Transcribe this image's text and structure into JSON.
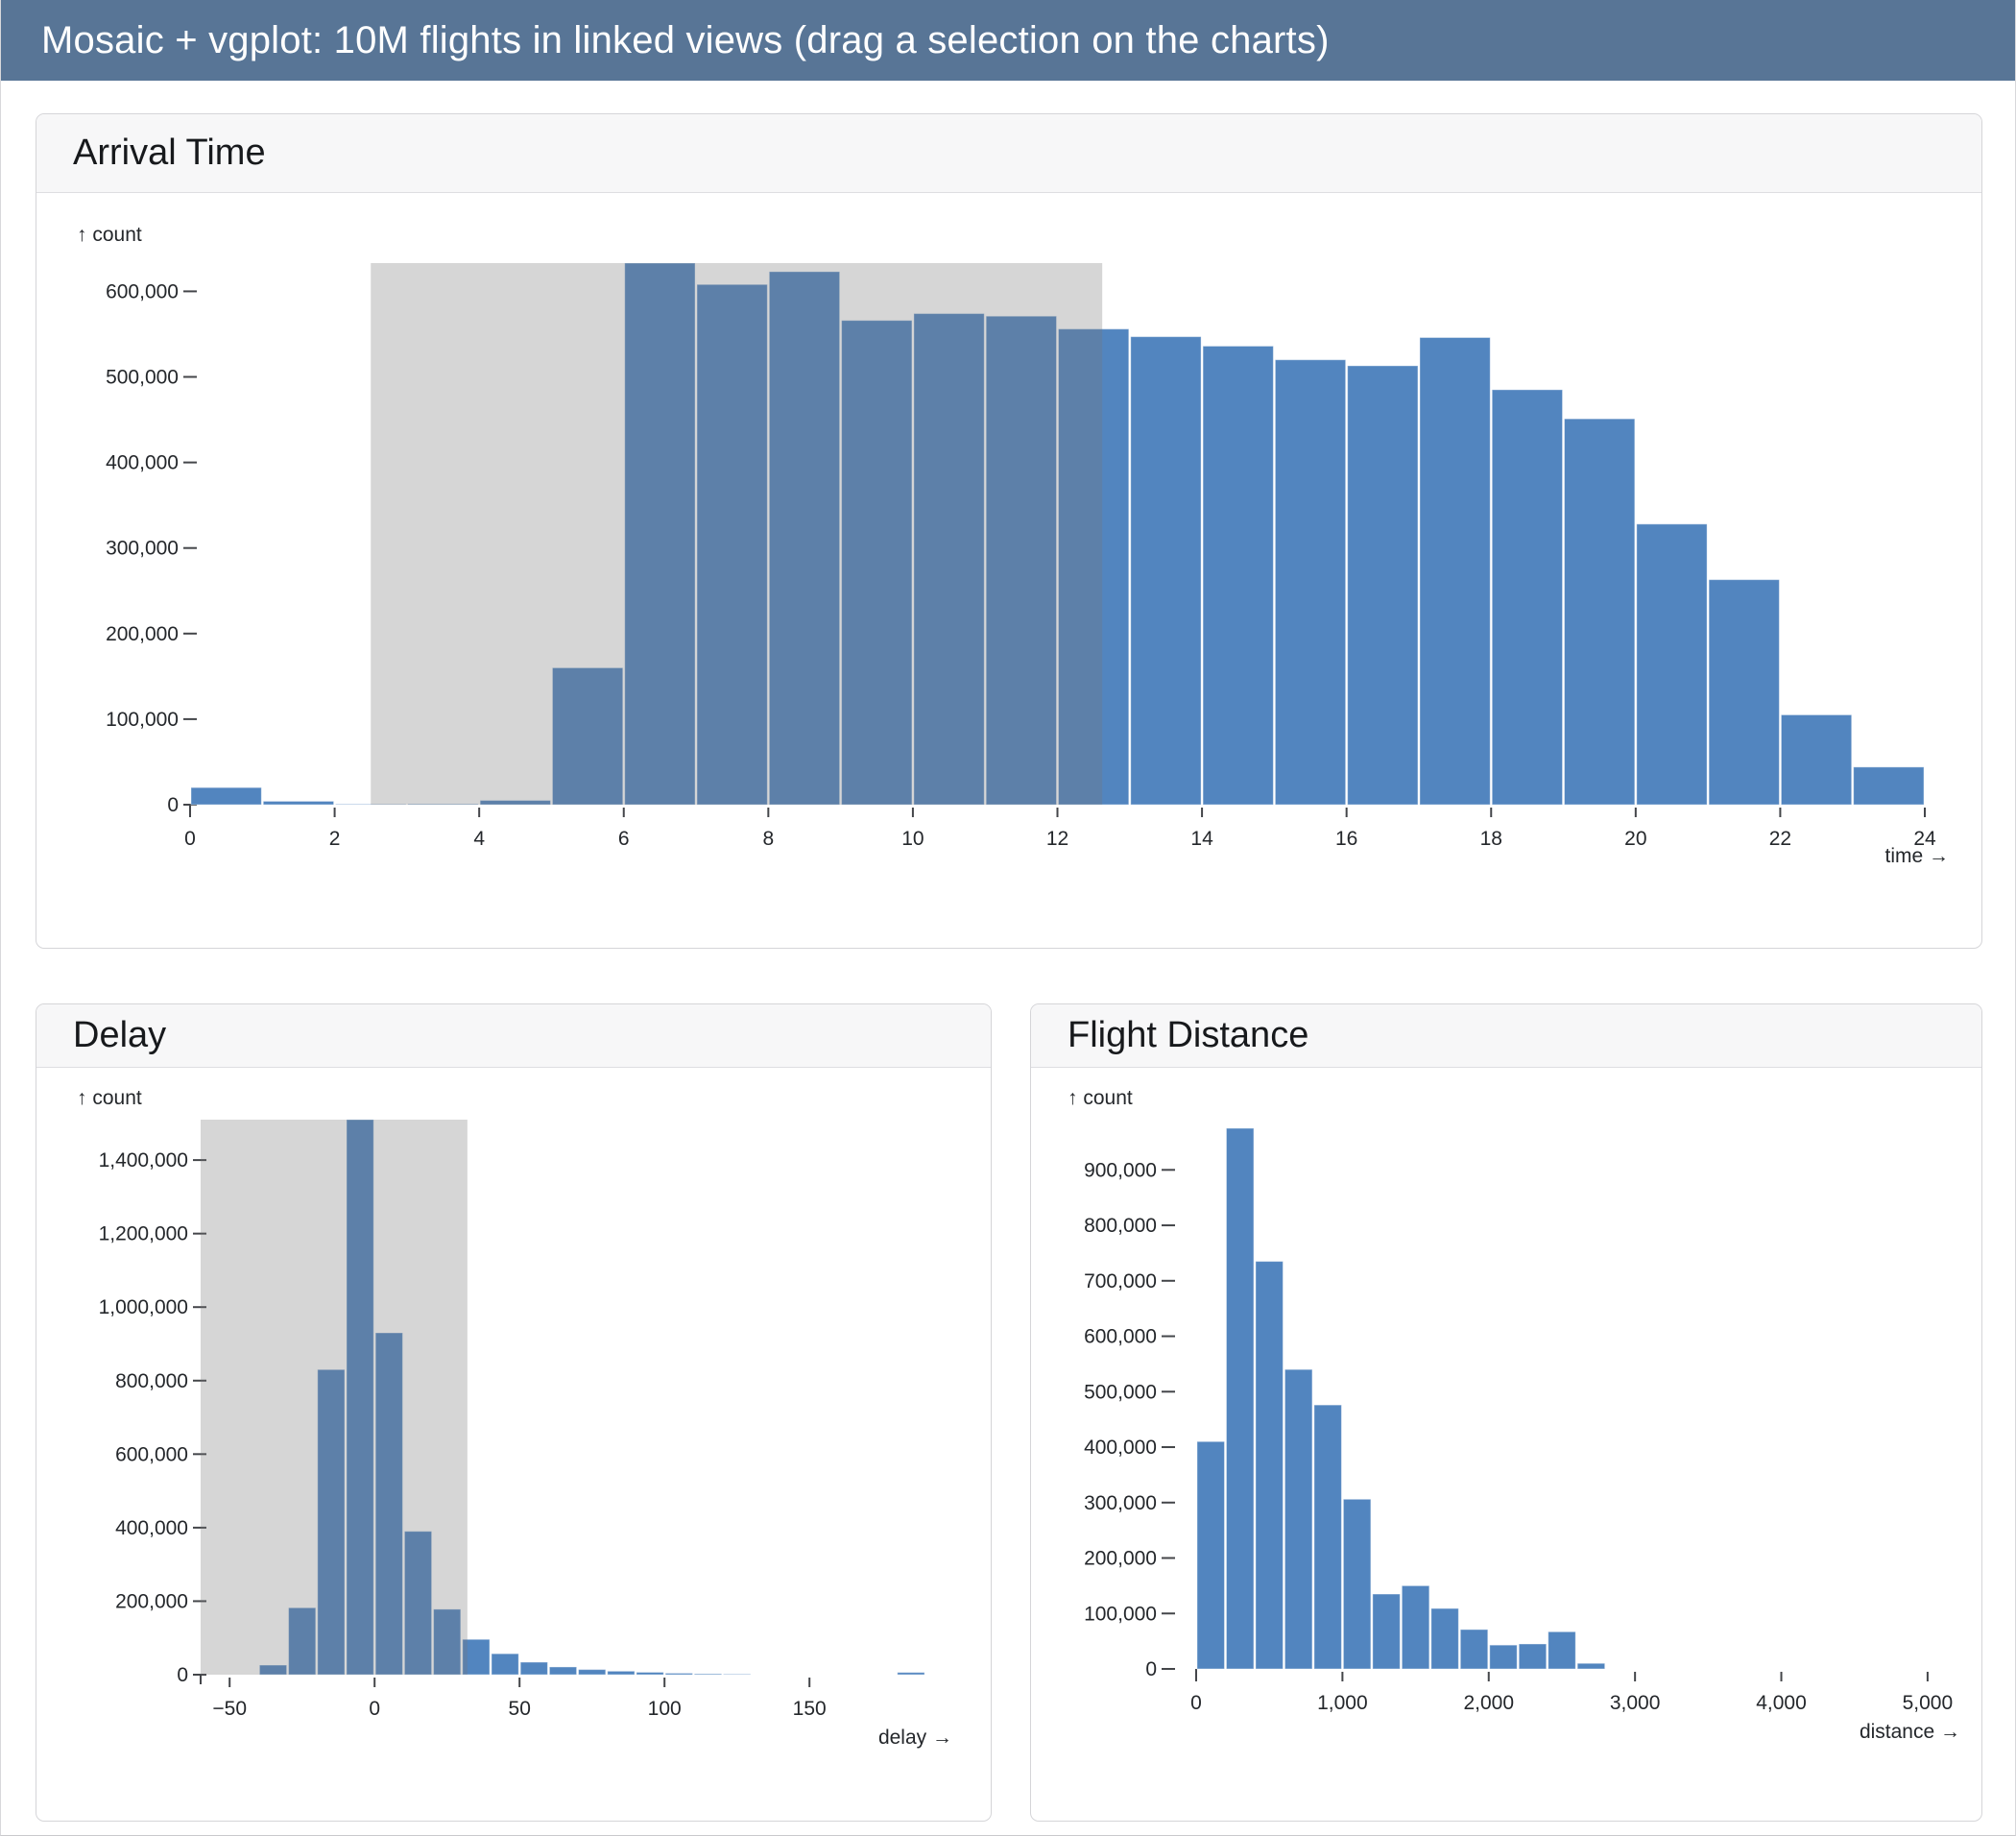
{
  "page": {
    "header_title": "Mosaic + vgplot: 10M flights in linked views (drag a selection on the charts)",
    "header_color": "#587596"
  },
  "colors": {
    "bar": "#5285BF",
    "bar_edge": "rgba(255,255,255,0.4)",
    "brush_overlay": "rgba(120,120,120,0.30)",
    "tick_text": "#24272b",
    "tick_line": "#44464a"
  },
  "chart_data": [
    {
      "id": "arrival",
      "type": "bar",
      "title": "Arrival Time",
      "count_label": "↑ count",
      "axis_label": "time →",
      "xlabel": "time",
      "ylabel": "count",
      "bin_start": 0,
      "bin_size": 1,
      "values": [
        20000,
        4000,
        500,
        800,
        5000,
        160000,
        633000,
        608000,
        623000,
        566000,
        574000,
        571000,
        556000,
        547000,
        536000,
        520000,
        513000,
        546000,
        485000,
        451000,
        328000,
        263000,
        105000,
        44000
      ],
      "x_domain": [
        0,
        24
      ],
      "x_ticks": [
        0,
        2,
        4,
        6,
        8,
        10,
        12,
        14,
        16,
        18,
        20,
        22,
        24
      ],
      "x_tick_labels": [
        "0",
        "2",
        "4",
        "6",
        "8",
        "10",
        "12",
        "14",
        "16",
        "18",
        "20",
        "22",
        "24"
      ],
      "y_max": 633000,
      "y_ticks": [
        0,
        100000,
        200000,
        300000,
        400000,
        500000,
        600000
      ],
      "y_tick_labels": [
        "0",
        "100,000",
        "200,000",
        "300,000",
        "400,000",
        "500,000",
        "600,000"
      ],
      "selection": {
        "from": 2.5,
        "to": 12.62
      },
      "grid": false,
      "legend": null
    },
    {
      "id": "delay",
      "type": "bar",
      "title": "Delay",
      "count_label": "↑ count",
      "axis_label": "delay →",
      "xlabel": "delay",
      "ylabel": "count",
      "bin_start": -60,
      "bin_size": 10,
      "values": [
        0,
        0,
        26000,
        182000,
        830000,
        1510000,
        930000,
        390000,
        178000,
        96000,
        57000,
        34000,
        21000,
        14000,
        9500,
        6500,
        4000,
        2400,
        1200,
        0,
        0,
        0,
        0,
        0,
        6000
      ],
      "x_domain": [
        -60,
        190
      ],
      "x_ticks": [
        -50,
        0,
        50,
        100,
        150
      ],
      "x_tick_labels": [
        "−50",
        "0",
        "50",
        "100",
        "150"
      ],
      "y_max": 1510000,
      "y_ticks": [
        0,
        200000,
        400000,
        600000,
        800000,
        1000000,
        1200000,
        1400000
      ],
      "y_tick_labels": [
        "0",
        "200,000",
        "400,000",
        "600,000",
        "800,000",
        "1,000,000",
        "1,200,000",
        "1,400,000"
      ],
      "selection": {
        "from": -60,
        "to": 32
      },
      "grid": false,
      "legend": null
    },
    {
      "id": "distance",
      "type": "bar",
      "title": "Flight Distance",
      "count_label": "↑ count",
      "axis_label": "distance →",
      "xlabel": "distance",
      "ylabel": "count",
      "bin_start": 0,
      "bin_size": 200,
      "values": [
        410000,
        975000,
        735000,
        540000,
        476000,
        306000,
        135000,
        150000,
        109000,
        71000,
        43000,
        45000,
        67000,
        10000
      ],
      "x_domain": [
        0,
        5250
      ],
      "x_ticks": [
        0,
        1000,
        2000,
        3000,
        4000,
        5000
      ],
      "x_tick_labels": [
        "0",
        "1,000",
        "2,000",
        "3,000",
        "4,000",
        "5,000"
      ],
      "y_max": 975000,
      "y_ticks": [
        0,
        100000,
        200000,
        300000,
        400000,
        500000,
        600000,
        700000,
        800000,
        900000
      ],
      "y_tick_labels": [
        "0",
        "100,000",
        "200,000",
        "300,000",
        "400,000",
        "500,000",
        "600,000",
        "700,000",
        "800,000",
        "900,000"
      ],
      "selection": null,
      "grid": false,
      "legend": null
    }
  ]
}
